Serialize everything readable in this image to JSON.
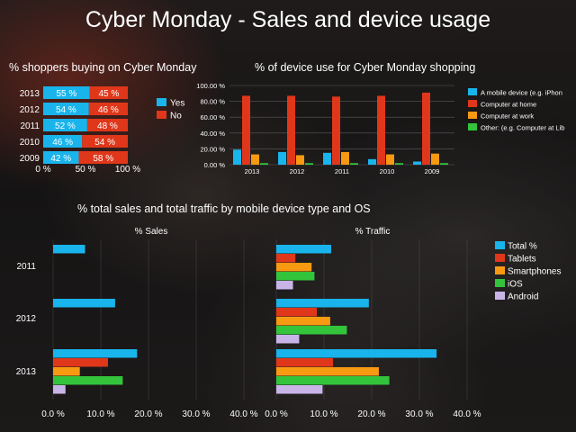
{
  "title": "Cyber Monday - Sales and device usage",
  "colors": {
    "yes": "#19b4ec",
    "no": "#e0371b",
    "mobile": "#19b4ec",
    "home": "#e0371b",
    "work": "#f79a12",
    "other": "#33c43c",
    "total": "#19b4ec",
    "tablets": "#e0371b",
    "smartphones": "#f79a12",
    "ios": "#33c43c",
    "android": "#c9b4e8",
    "grid": "#5a5a5a"
  },
  "chart_data": [
    {
      "type": "bar",
      "orientation": "horizontal",
      "stacked": true,
      "title": "% shoppers buying on Cyber Monday",
      "categories": [
        "2013",
        "2012",
        "2011",
        "2010",
        "2009"
      ],
      "series": [
        {
          "name": "Yes",
          "values": [
            55,
            54,
            52,
            46,
            42
          ],
          "labels": [
            "55 %",
            "54 %",
            "52 %",
            "46 %",
            "42 %"
          ]
        },
        {
          "name": "No",
          "values": [
            45,
            46,
            48,
            54,
            58
          ],
          "labels": [
            "45 %",
            "46 %",
            "48 %",
            "54 %",
            "58 %"
          ]
        }
      ],
      "xlim": [
        0,
        100
      ],
      "xticks": [
        "0 %",
        "50 %",
        "100 %"
      ],
      "legend": "right"
    },
    {
      "type": "bar",
      "orientation": "vertical",
      "title": "% of device use for Cyber Monday shopping",
      "categories": [
        "2013",
        "2012",
        "2011",
        "2010",
        "2009"
      ],
      "series": [
        {
          "name": "A mobile device (e.g. iPhon",
          "values": [
            19,
            16,
            15,
            7,
            4
          ]
        },
        {
          "name": "Computer at home",
          "values": [
            87,
            87,
            86,
            87,
            91
          ]
        },
        {
          "name": "Computer at work",
          "values": [
            13,
            12,
            16,
            13,
            14
          ]
        },
        {
          "name": "Other: (e.g. Computer at Lib",
          "values": [
            2,
            2,
            2,
            2,
            2
          ]
        }
      ],
      "ylim": [
        0,
        100
      ],
      "yticks": [
        "0.00 %",
        "20.00 %",
        "40.00 %",
        "60.00 %",
        "80.00 %",
        "100.00 %"
      ],
      "grid": true,
      "legend": "right"
    },
    {
      "type": "bar",
      "orientation": "horizontal",
      "title": "% total sales and total traffic by mobile device type and OS",
      "panels": [
        {
          "title": "% Sales",
          "categories": [
            "2011",
            "2012",
            "2013"
          ],
          "series": [
            {
              "name": "Total %",
              "values": [
                6.7,
                13.0,
                17.6
              ]
            },
            {
              "name": "Tablets",
              "values": [
                0,
                0,
                11.5
              ]
            },
            {
              "name": "Smartphones",
              "values": [
                0,
                0,
                5.6
              ]
            },
            {
              "name": "iOS",
              "values": [
                0,
                0,
                14.6
              ]
            },
            {
              "name": "Android",
              "values": [
                0,
                0,
                2.6
              ]
            }
          ],
          "xlim": [
            0,
            40
          ],
          "xticks": [
            "0.0 %",
            "10.0 %",
            "20.0 %",
            "30.0 %",
            "40.0 %"
          ]
        },
        {
          "title": "% Traffic",
          "categories": [
            "2011",
            "2012",
            "2013"
          ],
          "series": [
            {
              "name": "Total %",
              "values": [
                11.5,
                19.4,
                33.6
              ]
            },
            {
              "name": "Tablets",
              "values": [
                4.0,
                8.5,
                11.9
              ]
            },
            {
              "name": "Smartphones",
              "values": [
                7.4,
                11.3,
                21.5
              ]
            },
            {
              "name": "iOS",
              "values": [
                8.0,
                14.8,
                23.7
              ]
            },
            {
              "name": "Android",
              "values": [
                3.5,
                4.8,
                9.7
              ]
            }
          ],
          "xlim": [
            0,
            40
          ],
          "xticks": [
            "0.0 %",
            "10.0 %",
            "20.0 %",
            "30.0 %",
            "40.0 %"
          ]
        }
      ],
      "legend": "right"
    }
  ]
}
